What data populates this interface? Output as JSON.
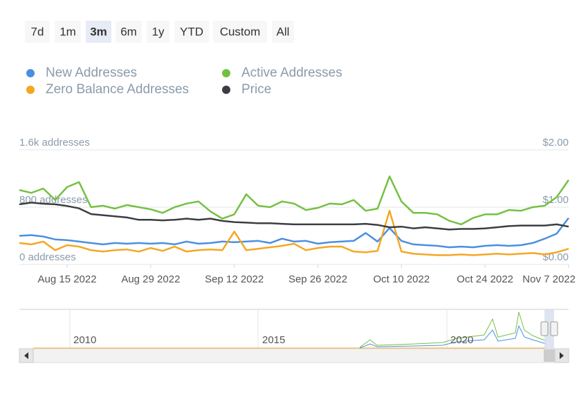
{
  "chart_data": {
    "type": "line",
    "range_buttons": [
      "7d",
      "1m",
      "3m",
      "6m",
      "1y",
      "YTD",
      "Custom",
      "All"
    ],
    "selected_range": 2,
    "x": [
      "2022-08-07",
      "2022-08-09",
      "2022-08-11",
      "2022-08-13",
      "2022-08-15",
      "2022-08-17",
      "2022-08-19",
      "2022-08-21",
      "2022-08-23",
      "2022-08-25",
      "2022-08-27",
      "2022-08-29",
      "2022-08-31",
      "2022-09-02",
      "2022-09-04",
      "2022-09-06",
      "2022-09-08",
      "2022-09-10",
      "2022-09-12",
      "2022-09-14",
      "2022-09-16",
      "2022-09-18",
      "2022-09-20",
      "2022-09-22",
      "2022-09-24",
      "2022-09-26",
      "2022-09-28",
      "2022-09-30",
      "2022-10-02",
      "2022-10-04",
      "2022-10-06",
      "2022-10-08",
      "2022-10-10",
      "2022-10-12",
      "2022-10-14",
      "2022-10-16",
      "2022-10-18",
      "2022-10-20",
      "2022-10-22",
      "2022-10-24",
      "2022-10-26",
      "2022-10-28",
      "2022-10-30",
      "2022-11-01",
      "2022-11-03",
      "2022-11-05",
      "2022-11-07"
    ],
    "xlim": [
      "2022-08-07",
      "2022-11-07"
    ],
    "xticks": [
      {
        "value": "2022-08-15",
        "label": "Aug 15 2022"
      },
      {
        "value": "2022-08-29",
        "label": "Aug 29 2022"
      },
      {
        "value": "2022-09-12",
        "label": "Sep 12 2022"
      },
      {
        "value": "2022-09-26",
        "label": "Sep 26 2022"
      },
      {
        "value": "2022-10-10",
        "label": "Oct 10 2022"
      },
      {
        "value": "2022-10-24",
        "label": "Oct 24 2022"
      },
      {
        "value": "2022-11-07",
        "label": "Nov 7 2022"
      }
    ],
    "ylim": [
      0,
      1600
    ],
    "yticks": [
      {
        "value": 0,
        "label": "0 addresses"
      },
      {
        "value": 800,
        "label": "800 addresses"
      },
      {
        "value": 1600,
        "label": "1.6k addresses"
      }
    ],
    "y2lim": [
      0,
      2
    ],
    "y2ticks": [
      {
        "value": 0,
        "label": "$0.00"
      },
      {
        "value": 1,
        "label": "$1.00"
      },
      {
        "value": 2,
        "label": "$2.00"
      }
    ],
    "grid": true,
    "series": [
      {
        "name": "New Addresses",
        "color": "#4a8fe0",
        "values": [
          400,
          410,
          390,
          350,
          340,
          320,
          300,
          280,
          300,
          290,
          300,
          290,
          300,
          280,
          320,
          290,
          300,
          320,
          310,
          320,
          330,
          300,
          360,
          320,
          330,
          290,
          310,
          320,
          330,
          440,
          320,
          510,
          330,
          280,
          270,
          260,
          240,
          250,
          240,
          260,
          270,
          260,
          270,
          300,
          360,
          430,
          650
        ]
      },
      {
        "name": "Active Addresses",
        "color": "#74c043",
        "values": [
          1040,
          1000,
          1060,
          900,
          1080,
          1150,
          800,
          820,
          780,
          830,
          800,
          770,
          720,
          800,
          850,
          880,
          740,
          640,
          700,
          980,
          820,
          800,
          880,
          850,
          760,
          790,
          850,
          840,
          900,
          750,
          780,
          1230,
          880,
          720,
          720,
          700,
          610,
          560,
          650,
          700,
          700,
          760,
          750,
          800,
          820,
          940,
          1180
        ]
      },
      {
        "name": "Zero Balance Addresses",
        "color": "#f5a623",
        "values": [
          300,
          280,
          320,
          200,
          270,
          250,
          200,
          180,
          200,
          210,
          180,
          230,
          190,
          250,
          180,
          200,
          210,
          200,
          460,
          200,
          220,
          240,
          260,
          290,
          200,
          230,
          250,
          250,
          180,
          170,
          190,
          750,
          180,
          150,
          140,
          130,
          130,
          140,
          130,
          140,
          150,
          140,
          150,
          160,
          140,
          170,
          220
        ]
      },
      {
        "name": "Price",
        "color": "#3a3d42",
        "axis": "y2",
        "values": [
          1.05,
          1.08,
          1.06,
          1.05,
          1.02,
          0.98,
          0.88,
          0.86,
          0.84,
          0.82,
          0.78,
          0.78,
          0.77,
          0.78,
          0.8,
          0.78,
          0.8,
          0.76,
          0.74,
          0.73,
          0.72,
          0.72,
          0.71,
          0.7,
          0.7,
          0.7,
          0.7,
          0.7,
          0.7,
          0.71,
          0.69,
          0.65,
          0.66,
          0.63,
          0.65,
          0.63,
          0.61,
          0.62,
          0.62,
          0.63,
          0.65,
          0.67,
          0.68,
          0.68,
          0.68,
          0.7,
          0.66
        ]
      }
    ],
    "navigator_labels": [
      "2010",
      "2015",
      "2020"
    ]
  }
}
